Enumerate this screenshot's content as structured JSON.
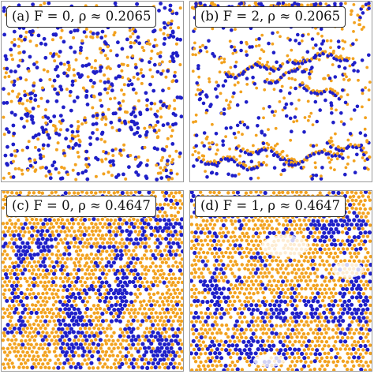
{
  "figure": {
    "colors": {
      "species_a": "#1f1fc8",
      "species_b": "#f2a21f",
      "background": "#ffffff",
      "frame": "#9a9a9a"
    },
    "panels": [
      {
        "id": "a",
        "label": "(a) F = 0, ρ ≈ 0.2065",
        "F": 0,
        "rho": 0.2065,
        "pattern": "uniform random mixture"
      },
      {
        "id": "b",
        "label": "(b) F = 2, ρ ≈ 0.2065",
        "F": 2,
        "rho": 0.2065,
        "pattern": "lanes with jammed clusters"
      },
      {
        "id": "c",
        "label": "(c) F = 0, ρ ≈ 0.4647",
        "F": 0,
        "rho": 0.4647,
        "pattern": "phase-separated domains"
      },
      {
        "id": "d",
        "label": "(d) F = 1, ρ ≈ 0.4647",
        "F": 1,
        "rho": 0.4647,
        "pattern": "stretched lanes"
      }
    ]
  }
}
